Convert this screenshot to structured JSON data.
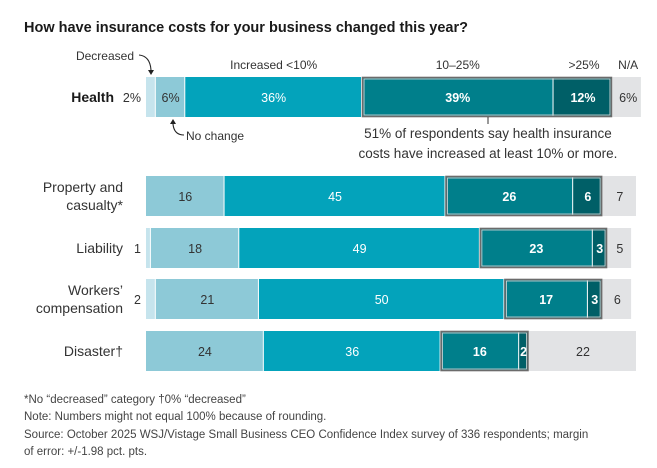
{
  "chart_data": {
    "type": "bar",
    "orientation": "horizontal-stacked",
    "title": "How have insurance costs for your business changed this year?",
    "segments": [
      {
        "key": "decreased",
        "name": "Decreased",
        "color": "#c6e4ed",
        "label_color": "#333333",
        "bold": false
      },
      {
        "key": "no_change",
        "name": "No change",
        "color": "#8dc9d7",
        "label_color": "#333333",
        "bold": false
      },
      {
        "key": "inc_lt10",
        "name": "Increased <10%",
        "color": "#03a3bb",
        "label_color": "#ffffff",
        "bold": false
      },
      {
        "key": "inc_10_25",
        "name": "10–25%",
        "color": "#007f8b",
        "label_color": "#ffffff",
        "bold": true
      },
      {
        "key": "inc_gt25",
        "name": ">25%",
        "color": "#005f67",
        "label_color": "#ffffff",
        "bold": true
      },
      {
        "key": "na",
        "name": "N/A",
        "color": "#e2e3e5",
        "label_color": "#333333",
        "bold": false
      }
    ],
    "categories": [
      "Health",
      "Property and casualty*",
      "Liability",
      "Workers’ compensation",
      "Disaster†"
    ],
    "rows": [
      {
        "label_lines": [
          "Health"
        ],
        "bold": true,
        "suffix": "%",
        "values": {
          "decreased": 2,
          "no_change": 6,
          "inc_lt10": 36,
          "inc_10_25": 39,
          "inc_gt25": 12,
          "na": 6
        }
      },
      {
        "label_lines": [
          "Property and",
          "casualty*"
        ],
        "bold": false,
        "suffix": "",
        "values": {
          "decreased": null,
          "no_change": 16,
          "inc_lt10": 45,
          "inc_10_25": 26,
          "inc_gt25": 6,
          "na": 7
        }
      },
      {
        "label_lines": [
          "Liability"
        ],
        "bold": false,
        "suffix": "",
        "values": {
          "decreased": 1,
          "no_change": 18,
          "inc_lt10": 49,
          "inc_10_25": 23,
          "inc_gt25": 3,
          "na": 5
        }
      },
      {
        "label_lines": [
          "Workers’",
          "compensation"
        ],
        "bold": false,
        "suffix": "",
        "values": {
          "decreased": 2,
          "no_change": 21,
          "inc_lt10": 50,
          "inc_10_25": 17,
          "inc_gt25": 3,
          "na": 6
        }
      },
      {
        "label_lines": [
          "Disaster†"
        ],
        "bold": false,
        "suffix": "",
        "values": {
          "decreased": 0,
          "no_change": 24,
          "inc_lt10": 36,
          "inc_10_25": 16,
          "inc_gt25": 2,
          "na": 22
        }
      }
    ],
    "legend_labels": {
      "decreased": "Decreased",
      "no_change": "No change",
      "inc_lt10": "Increased <10%",
      "inc_10_25": "10–25%",
      "inc_gt25": ">25%",
      "na": "N/A"
    },
    "annotation": {
      "lines": [
        "51% of respondents say health insurance",
        "costs have increased at least 10% or more."
      ]
    },
    "xlim": [
      0,
      100
    ],
    "grid": false
  },
  "footnotes": [
    "*No “decreased” category   †0% “decreased”",
    "Note: Numbers might not equal 100% because of rounding.",
    "Source: October 2025 WSJ/Vistage Small Business CEO Confidence Index survey of 336 respondents; margin",
    "of error: +/-1.98 pct. pts."
  ]
}
